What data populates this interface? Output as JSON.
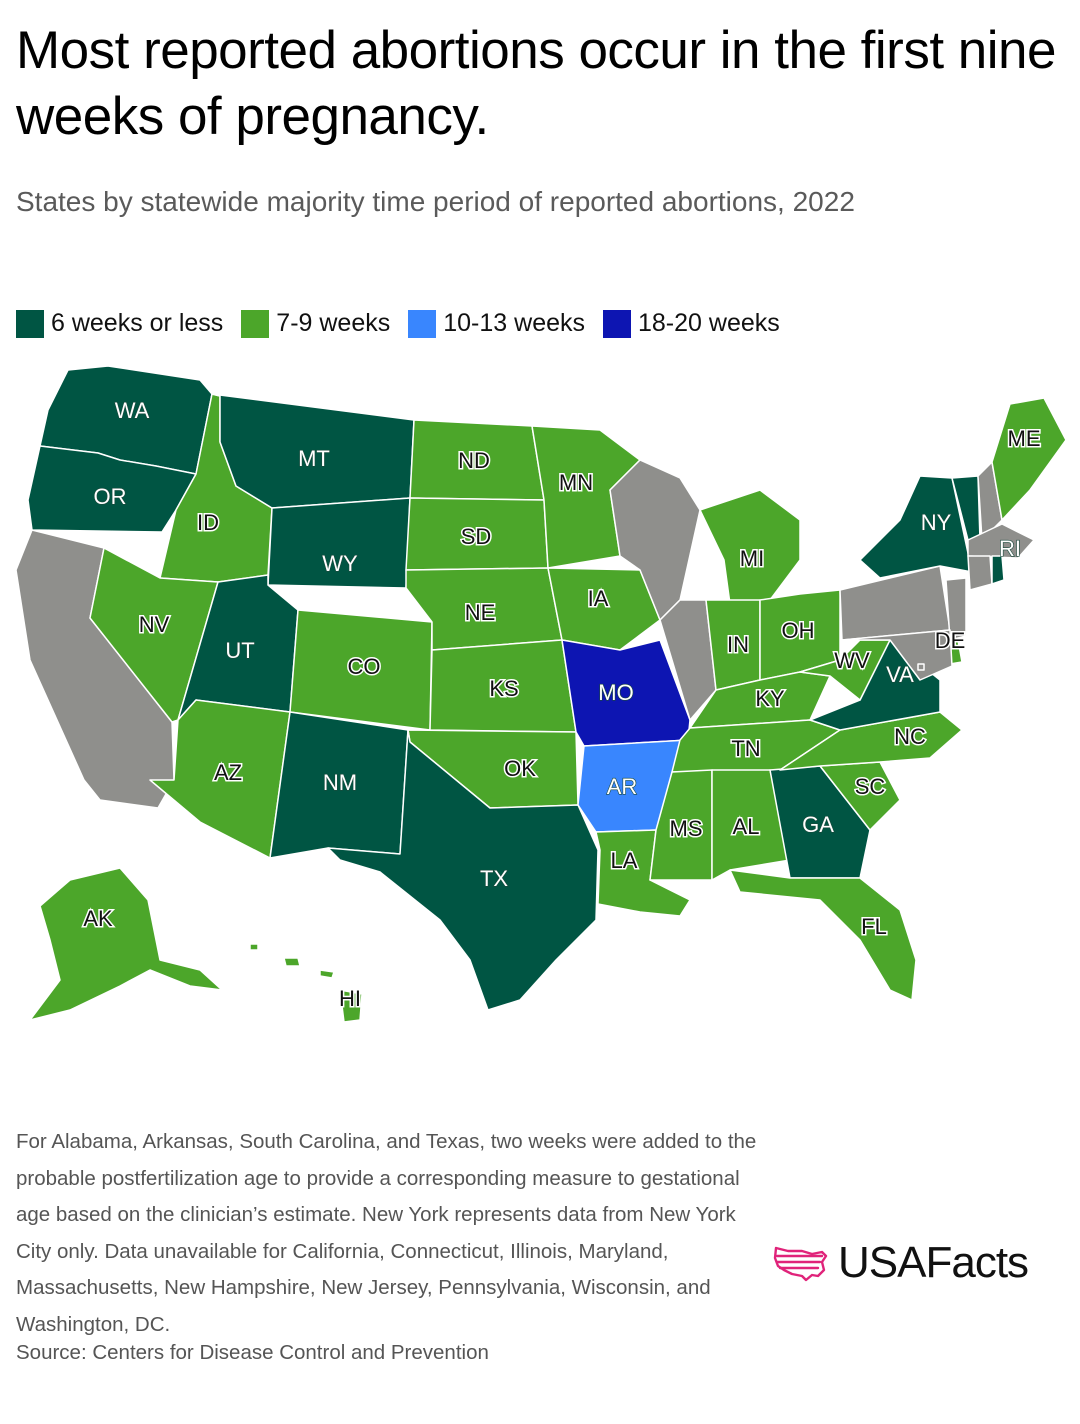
{
  "title": "Most reported abortions occur in the first nine weeks of pregnancy.",
  "subtitle": "States by statewide majority time period of reported abortions, 2022",
  "legend": [
    {
      "label": "6 weeks or less",
      "color": "#005543"
    },
    {
      "label": "7-9 weeks",
      "color": "#4ca62a"
    },
    {
      "label": "10-13 weeks",
      "color": "#3986fe"
    },
    {
      "label": "18-20 weeks",
      "color": "#0d15b2"
    }
  ],
  "no_data_color": "#8f8f8c",
  "states": [
    {
      "abbr": "WA",
      "category": "6 weeks or less"
    },
    {
      "abbr": "OR",
      "category": "6 weeks or less"
    },
    {
      "abbr": "CA",
      "category": "no data"
    },
    {
      "abbr": "ID",
      "category": "7-9 weeks"
    },
    {
      "abbr": "NV",
      "category": "7-9 weeks"
    },
    {
      "abbr": "MT",
      "category": "6 weeks or less"
    },
    {
      "abbr": "WY",
      "category": "6 weeks or less"
    },
    {
      "abbr": "UT",
      "category": "6 weeks or less"
    },
    {
      "abbr": "AZ",
      "category": "7-9 weeks"
    },
    {
      "abbr": "CO",
      "category": "7-9 weeks"
    },
    {
      "abbr": "NM",
      "category": "6 weeks or less"
    },
    {
      "abbr": "ND",
      "category": "7-9 weeks"
    },
    {
      "abbr": "SD",
      "category": "7-9 weeks"
    },
    {
      "abbr": "NE",
      "category": "7-9 weeks"
    },
    {
      "abbr": "KS",
      "category": "7-9 weeks"
    },
    {
      "abbr": "OK",
      "category": "7-9 weeks"
    },
    {
      "abbr": "TX",
      "category": "6 weeks or less"
    },
    {
      "abbr": "MN",
      "category": "7-9 weeks"
    },
    {
      "abbr": "IA",
      "category": "7-9 weeks"
    },
    {
      "abbr": "MO",
      "category": "18-20 weeks"
    },
    {
      "abbr": "AR",
      "category": "10-13 weeks"
    },
    {
      "abbr": "LA",
      "category": "7-9 weeks"
    },
    {
      "abbr": "WI",
      "category": "no data"
    },
    {
      "abbr": "IL",
      "category": "no data"
    },
    {
      "abbr": "MI",
      "category": "7-9 weeks"
    },
    {
      "abbr": "IN",
      "category": "7-9 weeks"
    },
    {
      "abbr": "OH",
      "category": "7-9 weeks"
    },
    {
      "abbr": "KY",
      "category": "7-9 weeks"
    },
    {
      "abbr": "TN",
      "category": "7-9 weeks"
    },
    {
      "abbr": "MS",
      "category": "7-9 weeks"
    },
    {
      "abbr": "AL",
      "category": "7-9 weeks"
    },
    {
      "abbr": "GA",
      "category": "6 weeks or less"
    },
    {
      "abbr": "FL",
      "category": "7-9 weeks"
    },
    {
      "abbr": "SC",
      "category": "7-9 weeks"
    },
    {
      "abbr": "NC",
      "category": "7-9 weeks"
    },
    {
      "abbr": "VA",
      "category": "6 weeks or less"
    },
    {
      "abbr": "WV",
      "category": "7-9 weeks"
    },
    {
      "abbr": "PA",
      "category": "no data"
    },
    {
      "abbr": "NY",
      "category": "6 weeks or less"
    },
    {
      "abbr": "VT",
      "category": "6 weeks or less"
    },
    {
      "abbr": "NH",
      "category": "no data"
    },
    {
      "abbr": "ME",
      "category": "7-9 weeks"
    },
    {
      "abbr": "MA",
      "category": "no data"
    },
    {
      "abbr": "CT",
      "category": "no data"
    },
    {
      "abbr": "RI",
      "category": "6 weeks or less"
    },
    {
      "abbr": "NJ",
      "category": "no data"
    },
    {
      "abbr": "DE",
      "category": "7-9 weeks"
    },
    {
      "abbr": "MD",
      "category": "no data"
    },
    {
      "abbr": "DC",
      "category": "no data"
    },
    {
      "abbr": "AK",
      "category": "7-9 weeks"
    },
    {
      "abbr": "HI",
      "category": "7-9 weeks"
    }
  ],
  "notes": "For Alabama, Arkansas, South Carolina, and Texas, two weeks were added to the probable postfertilization age to provide a corresponding measure to gestational age based on the clinician’s estimate. New York represents data from New York City only. Data unavailable for California, Connecticut, Illinois, Maryland, Massachusetts, New Hampshire, New Jersey, Pennsylvania, Wisconsin, and Washington, DC.",
  "source": "Source: Centers for Disease Control and Prevention",
  "logo": {
    "text": "USAFacts",
    "icon": "usafacts-flag-map-icon",
    "icon_color": "#e0237a"
  }
}
